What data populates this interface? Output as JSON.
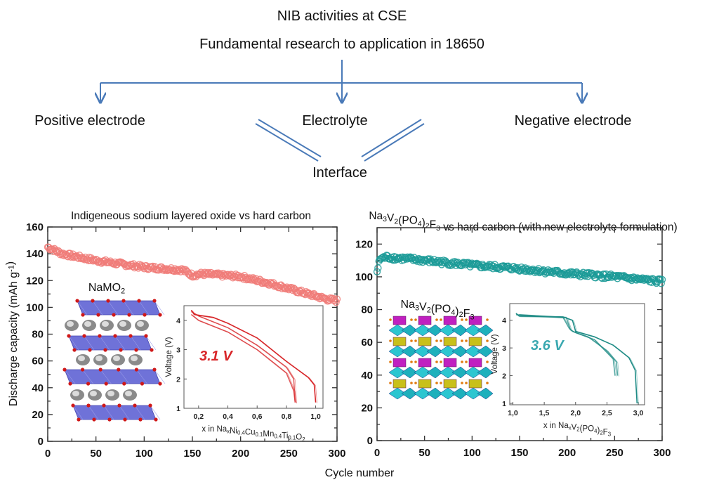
{
  "diagram": {
    "title": "NIB activities at CSE",
    "subtitle": "Fundamental research to application in 18650",
    "branches": [
      "Positive electrode",
      "Electrolyte",
      "Negative electrode"
    ],
    "convergence": "Interface",
    "line_color": "#4a7ab8"
  },
  "shared_xlabel": "Cycle number",
  "chart_data": [
    {
      "type": "scatter",
      "title": "Indigeneous sodium layered oxide vs hard carbon",
      "ylabel": "Discharge capacity (mAh g-1)",
      "xlabel": "Cycle number",
      "xlim": [
        0,
        300
      ],
      "ylim": [
        0,
        160
      ],
      "x_ticks": [
        0,
        50,
        100,
        150,
        200,
        250,
        300
      ],
      "y_ticks": [
        0,
        20,
        40,
        60,
        80,
        100,
        120,
        140,
        160
      ],
      "color": "#f07b78",
      "marker": "open-circle",
      "x": [
        0,
        15,
        50,
        100,
        140,
        150,
        160,
        200,
        230,
        260,
        290,
        300
      ],
      "y": [
        145,
        140,
        135,
        130,
        128,
        124,
        125,
        123,
        118,
        112,
        106,
        105
      ],
      "structure_label": "NaMO2",
      "inset": {
        "type": "line",
        "xlabel": "x in NaxNi0.4Cu0.1Mn0.4Ti0.1O2",
        "ylabel": "Voltage (V)",
        "xlim": [
          0.1,
          1.05
        ],
        "ylim": [
          1,
          4.5
        ],
        "x_ticks": [
          0.2,
          0.4,
          0.6,
          0.8,
          1.0
        ],
        "x_tick_labels": [
          "0,2",
          "0,4",
          "0,6",
          "0,8",
          "1,0"
        ],
        "y_ticks": [
          1,
          2,
          3,
          4
        ],
        "y_tick_labels": [
          "1",
          "2",
          "3",
          "4"
        ],
        "annotation": "3.1 V",
        "color": "#d8272a",
        "series": [
          {
            "x": [
              0.15,
              0.17,
              0.3,
              0.4,
              0.6,
              0.8,
              0.95,
              0.99,
              1.0
            ],
            "y": [
              4.35,
              4.2,
              4.1,
              3.9,
              3.4,
              2.6,
              2.05,
              1.8,
              1.2
            ]
          },
          {
            "x": [
              0.15,
              0.2,
              0.4,
              0.6,
              0.8,
              0.85,
              0.86
            ],
            "y": [
              4.2,
              4.0,
              3.6,
              3.0,
              2.2,
              1.6,
              1.2
            ]
          },
          {
            "x": [
              0.15,
              0.2,
              0.4,
              0.6,
              0.8,
              0.85,
              0.86
            ],
            "y": [
              4.3,
              4.15,
              3.75,
              3.15,
              2.4,
              2.0,
              1.2
            ]
          }
        ]
      }
    },
    {
      "type": "scatter",
      "title": "Na3V2(PO4)2F3 vs hard carbon (with new electrolyte formulation)",
      "xlabel": "Cycle number",
      "xlim": [
        0,
        300
      ],
      "ylim": [
        0,
        130
      ],
      "x_ticks": [
        0,
        50,
        100,
        150,
        200,
        250,
        300
      ],
      "y_ticks": [
        0,
        20,
        40,
        60,
        80,
        100,
        120
      ],
      "color": "#1a9a96",
      "marker": "open-circle",
      "x": [
        0,
        3,
        10,
        50,
        100,
        150,
        200,
        250,
        300
      ],
      "y": [
        103,
        111,
        112,
        110,
        107,
        105,
        102,
        100,
        97
      ],
      "structure_label": "Na3V2(PO4)2F3",
      "inset": {
        "type": "line",
        "xlabel": "x in NaxV2(PO4)2F3",
        "ylabel": "Voltage (V)",
        "xlim": [
          0.95,
          3.1
        ],
        "ylim": [
          0.95,
          4.6
        ],
        "x_ticks": [
          1.0,
          1.5,
          2.0,
          2.5,
          3.0
        ],
        "x_tick_labels": [
          "1,0",
          "1,5",
          "2,0",
          "2,5",
          "3,0"
        ],
        "y_ticks": [
          1,
          2,
          3,
          4
        ],
        "y_tick_labels": [
          "1",
          "2",
          "3",
          "4"
        ],
        "annotation": "3.6 V",
        "color": "#1f8c86",
        "annotation_color": "#3aa8b0",
        "series": [
          {
            "x": [
              1.05,
              1.1,
              1.8,
              1.95,
              2.0,
              2.3,
              2.6,
              2.85,
              2.95,
              2.98
            ],
            "y": [
              4.25,
              4.15,
              4.12,
              4.0,
              3.6,
              3.4,
              3.1,
              2.65,
              2.2,
              1.0
            ]
          },
          {
            "x": [
              1.05,
              1.8,
              1.9,
              1.95,
              2.2,
              2.5,
              2.65,
              2.67
            ],
            "y": [
              4.2,
              4.1,
              3.7,
              3.6,
              3.4,
              2.9,
              2.5,
              2.0
            ]
          },
          {
            "x": [
              1.1,
              1.85,
              1.92,
              2.0,
              2.3,
              2.6,
              2.63
            ],
            "y": [
              4.2,
              4.1,
              3.65,
              3.55,
              3.3,
              2.6,
              2.0
            ]
          }
        ]
      }
    }
  ]
}
